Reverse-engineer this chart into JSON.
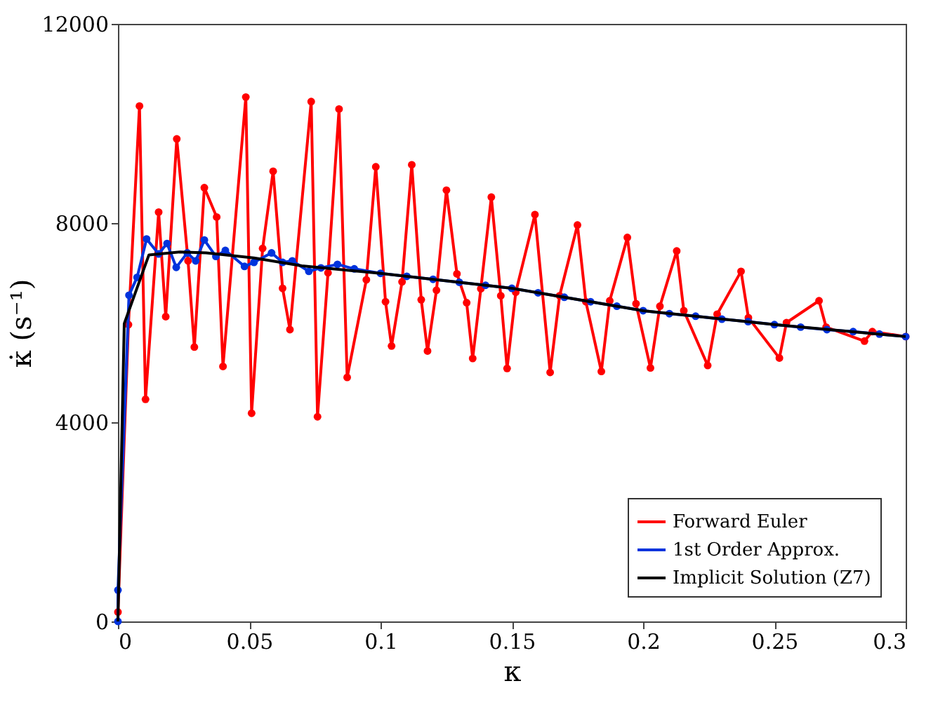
{
  "chart_data": {
    "type": "line",
    "xlabel": "κ",
    "ylabel": "κ̇ (s⁻¹)",
    "xlim": [
      0,
      0.3
    ],
    "ylim": [
      0,
      12000
    ],
    "xticks": [
      0,
      0.05,
      0.1,
      0.15,
      0.2,
      0.25,
      0.3
    ],
    "yticks": [
      0,
      4000,
      8000,
      12000
    ],
    "grid": false,
    "legend": "bottom right",
    "line_style": "solid",
    "series": [
      {
        "name": "Forward Euler",
        "color": "#ff0000",
        "marker": "circle",
        "x": [
          0,
          0.004,
          0.0082,
          0.0105,
          0.0155,
          0.0182,
          0.0224,
          0.0267,
          0.0291,
          0.0329,
          0.0376,
          0.04,
          0.0487,
          0.0509,
          0.0551,
          0.0591,
          0.0627,
          0.0655,
          0.0736,
          0.076,
          0.08,
          0.0842,
          0.0873,
          0.0946,
          0.0982,
          0.1019,
          0.1042,
          0.1082,
          0.1119,
          0.1155,
          0.1179,
          0.1213,
          0.1251,
          0.1291,
          0.1328,
          0.1351,
          0.1382,
          0.1422,
          0.1458,
          0.1482,
          0.1515,
          0.1588,
          0.1646,
          0.1682,
          0.175,
          0.1782,
          0.1841,
          0.1873,
          0.194,
          0.1973,
          0.2028,
          0.2064,
          0.2128,
          0.2155,
          0.2246,
          0.2282,
          0.2373,
          0.2401,
          0.2519,
          0.2546,
          0.267,
          0.2697,
          0.2843,
          0.2873,
          0.3
        ],
        "values": [
          190,
          5960,
          10350,
          4460,
          8220,
          6120,
          9690,
          7240,
          5510,
          8710,
          8120,
          5120,
          10530,
          4180,
          7490,
          9040,
          6690,
          5860,
          10440,
          4110,
          7000,
          10290,
          4900,
          6860,
          9130,
          6420,
          5530,
          6820,
          9170,
          6460,
          5430,
          6650,
          8660,
          6980,
          6400,
          5280,
          6680,
          8520,
          6540,
          5080,
          6610,
          8170,
          5000,
          6540,
          7960,
          6420,
          5020,
          6440,
          7710,
          6380,
          5090,
          6330,
          7440,
          6240,
          5140,
          6170,
          7030,
          6100,
          5290,
          6000,
          6440,
          5910,
          5630,
          5820,
          5720
        ]
      },
      {
        "name": "1st Order Approx.",
        "color": "#0033dd",
        "marker": "circle",
        "x": [
          0,
          0,
          0.0042,
          0.0073,
          0.0109,
          0.0155,
          0.0187,
          0.0222,
          0.0264,
          0.0296,
          0.0329,
          0.0373,
          0.0409,
          0.0482,
          0.0518,
          0.0585,
          0.0627,
          0.0664,
          0.0727,
          0.0773,
          0.0836,
          0.09,
          0.1,
          0.11,
          0.12,
          0.13,
          0.14,
          0.15,
          0.16,
          0.17,
          0.18,
          0.19,
          0.2,
          0.21,
          0.22,
          0.23,
          0.24,
          0.25,
          0.26,
          0.27,
          0.28,
          0.29,
          0.3
        ],
        "values": [
          0,
          630,
          6550,
          6910,
          7680,
          7380,
          7590,
          7110,
          7400,
          7240,
          7660,
          7330,
          7450,
          7130,
          7210,
          7400,
          7210,
          7240,
          7030,
          7100,
          7170,
          7080,
          6990,
          6930,
          6870,
          6810,
          6750,
          6690,
          6600,
          6510,
          6420,
          6330,
          6240,
          6180,
          6130,
          6070,
          6020,
          5960,
          5910,
          5860,
          5820,
          5770,
          5720
        ]
      },
      {
        "name": "Implicit Solution (Z7)",
        "color": "#000000",
        "marker": "none",
        "x": [
          0,
          0.0024,
          0.0118,
          0.0236,
          0.0336,
          0.0518,
          0.07,
          0.088,
          0.1,
          0.15,
          0.2,
          0.25,
          0.3
        ],
        "values": [
          0,
          5980,
          7360,
          7420,
          7400,
          7300,
          7140,
          7050,
          6990,
          6690,
          6240,
          5960,
          5720
        ]
      }
    ]
  }
}
